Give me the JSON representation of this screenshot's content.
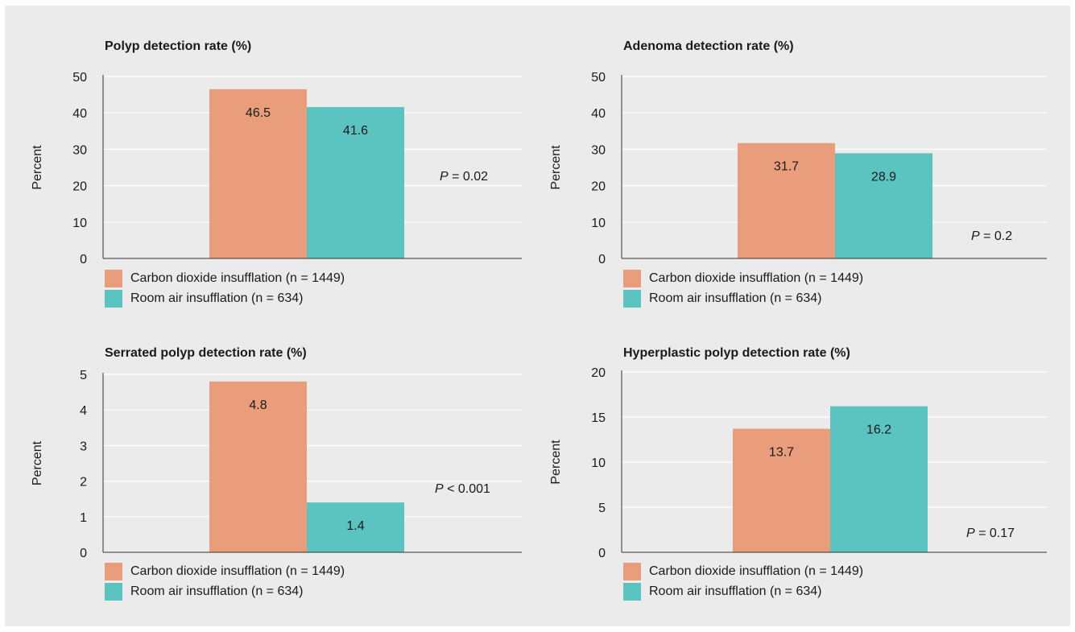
{
  "colors": {
    "co2": "#e99d7b",
    "air": "#5bc4c0",
    "grid": "#ffffff",
    "axis": "#333333",
    "background": "#ebebeb"
  },
  "legend": {
    "co2_label": "Carbon dioxide insufflation (n = 1449)",
    "air_label": "Room air insufflation (n = 634)"
  },
  "chart_data": [
    {
      "type": "bar",
      "title": "Polyp detection rate (%)",
      "ylabel": "Percent",
      "ylim": [
        0,
        50
      ],
      "ticks": [
        0,
        10,
        20,
        30,
        40,
        50
      ],
      "grid": true,
      "series": [
        {
          "name": "Carbon dioxide insufflation (n = 1449)",
          "value": 46.5,
          "label": "46.5"
        },
        {
          "name": "Room air insufflation (n = 634)",
          "value": 41.6,
          "label": "41.6"
        }
      ],
      "p_symbol": "P",
      "p_text": " = 0.02"
    },
    {
      "type": "bar",
      "title": "Adenoma detection rate (%)",
      "ylabel": "Percent",
      "ylim": [
        0,
        50
      ],
      "ticks": [
        0,
        10,
        20,
        30,
        40,
        50
      ],
      "grid": true,
      "series": [
        {
          "name": "Carbon dioxide insufflation (n = 1449)",
          "value": 31.7,
          "label": "31.7"
        },
        {
          "name": "Room air insufflation (n = 634)",
          "value": 28.9,
          "label": "28.9"
        }
      ],
      "p_symbol": "P",
      "p_text": " = 0.2"
    },
    {
      "type": "bar",
      "title": "Serrated polyp detection rate (%)",
      "ylabel": "Percent",
      "ylim": [
        0,
        5
      ],
      "ticks": [
        0,
        1,
        2,
        3,
        4,
        5
      ],
      "grid": true,
      "series": [
        {
          "name": "Carbon dioxide insufflation (n = 1449)",
          "value": 4.8,
          "label": "4.8"
        },
        {
          "name": "Room air insufflation (n = 634)",
          "value": 1.4,
          "label": "1.4"
        }
      ],
      "p_symbol": "P",
      "p_text": " < 0.001"
    },
    {
      "type": "bar",
      "title": "Hyperplastic polyp detection rate (%)",
      "ylabel": "Percent",
      "ylim": [
        0,
        20
      ],
      "ticks": [
        0,
        5,
        10,
        15,
        20
      ],
      "grid": true,
      "series": [
        {
          "name": "Carbon dioxide insufflation (n = 1449)",
          "value": 13.7,
          "label": "13.7"
        },
        {
          "name": "Room air insufflation (n = 634)",
          "value": 16.2,
          "label": "16.2"
        }
      ],
      "p_symbol": "P",
      "p_text": " = 0.17"
    }
  ]
}
